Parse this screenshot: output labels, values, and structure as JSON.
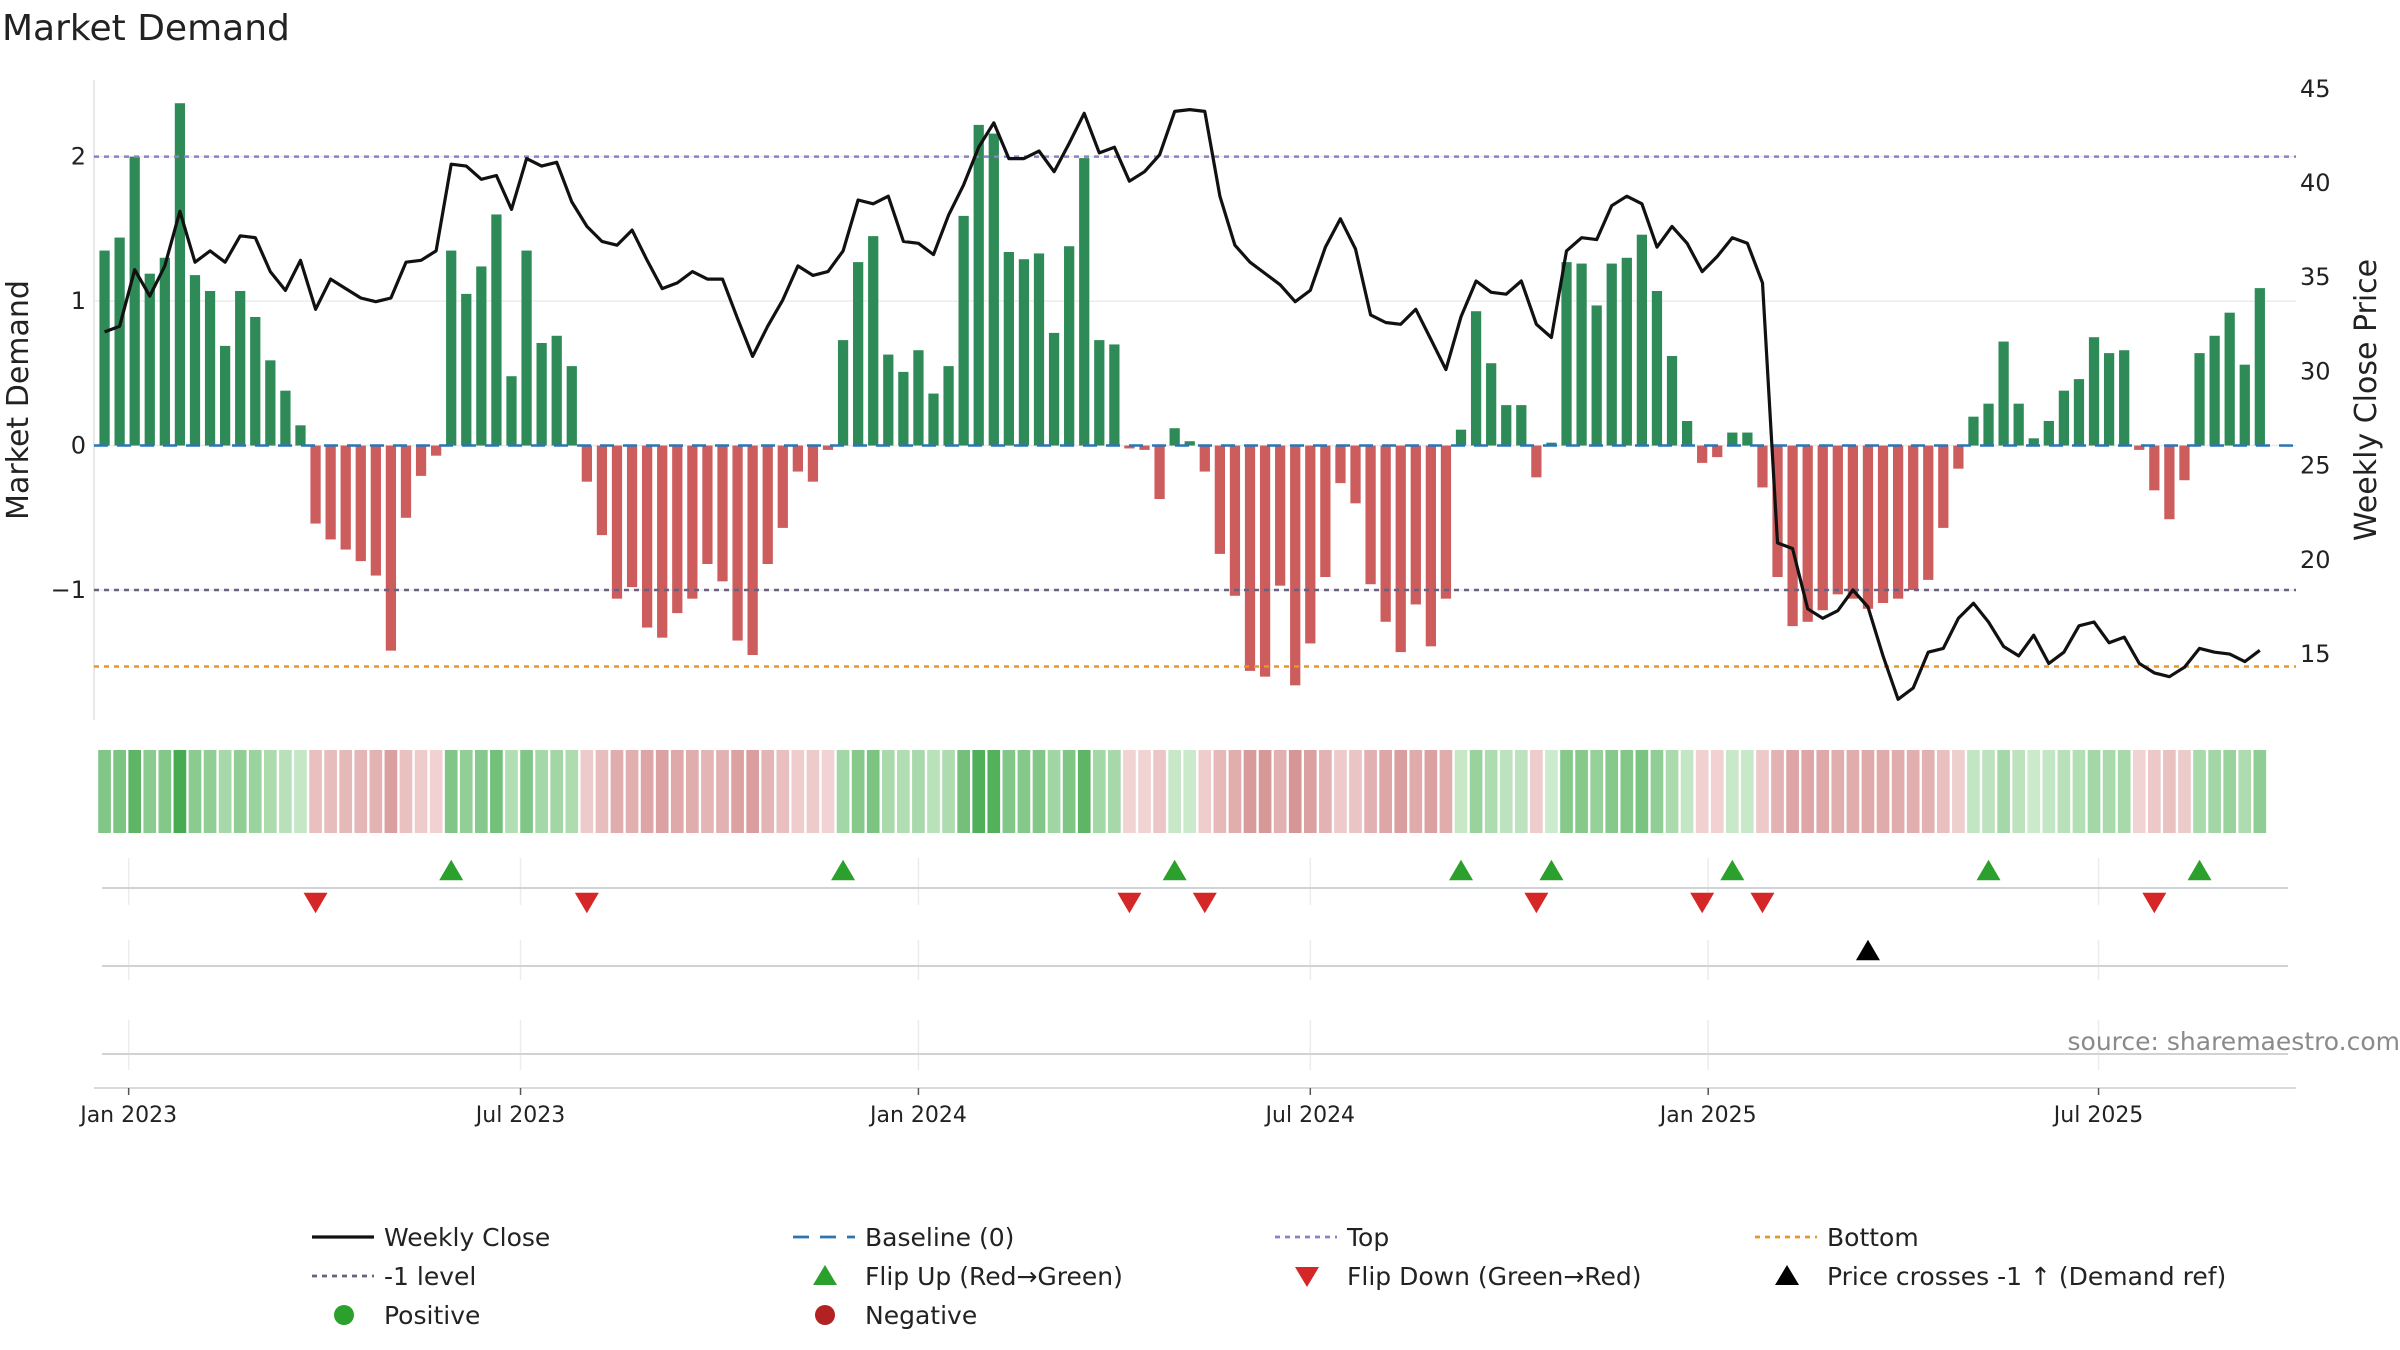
{
  "chart_data": {
    "type": "bar+line",
    "title": "Market Demand",
    "ylabel_left": "Market Demand",
    "ylabel_right": "Weekly Close Price",
    "source": "source: sharemaestro.com",
    "ylim_left": [
      -1.9,
      2.6
    ],
    "ylim_right": [
      11.5,
      46.0
    ],
    "yticks_left": [
      {
        "v": 2,
        "label": "2"
      },
      {
        "v": 1,
        "label": "1"
      },
      {
        "v": 0,
        "label": "0"
      },
      {
        "v": -1,
        "label": "−1"
      }
    ],
    "yticks_right": [
      {
        "v": 45,
        "label": "45"
      },
      {
        "v": 40,
        "label": "40"
      },
      {
        "v": 35,
        "label": "35"
      },
      {
        "v": 30,
        "label": "30"
      },
      {
        "v": 25,
        "label": "25"
      },
      {
        "v": 20,
        "label": "20"
      },
      {
        "v": 15,
        "label": "15"
      }
    ],
    "x_start": "2022-12-19",
    "x_range_weeks": [
      -0.7,
      145.4
    ],
    "x_ticks": [
      {
        "label": "Jan 2023",
        "week": 1.6
      },
      {
        "label": "Jul 2023",
        "week": 27.6
      },
      {
        "label": "Jan 2024",
        "week": 54.0
      },
      {
        "label": "Jul 2024",
        "week": 80.0
      },
      {
        "label": "Jan 2025",
        "week": 106.4
      },
      {
        "label": "Jul 2025",
        "week": 132.3
      }
    ],
    "levels": {
      "top": 2.0,
      "minus_one": -1.0,
      "bottom": -1.53,
      "baseline": 0
    },
    "colors": {
      "positive": "#2e8b57",
      "negative": "#cd5c5c",
      "close": "#111111",
      "top": "#8c80c8",
      "minus_one": "#6b6080",
      "bottom": "#e8952a",
      "baseline": "#2b75b5",
      "flip_up": "#2ca02c",
      "flip_down": "#d62728",
      "cross": "#000000"
    },
    "demand": [
      1.35,
      1.44,
      2.0,
      1.19,
      1.3,
      2.37,
      1.18,
      1.07,
      0.69,
      1.07,
      0.89,
      0.59,
      0.38,
      0.14,
      -0.54,
      -0.65,
      -0.72,
      -0.8,
      -0.9,
      -1.42,
      -0.5,
      -0.21,
      -0.07,
      1.35,
      1.05,
      1.24,
      1.6,
      0.48,
      1.35,
      0.71,
      0.76,
      0.55,
      -0.25,
      -0.62,
      -1.06,
      -0.98,
      -1.26,
      -1.33,
      -1.16,
      -1.06,
      -0.82,
      -0.94,
      -1.35,
      -1.45,
      -0.82,
      -0.57,
      -0.18,
      -0.25,
      -0.03,
      0.73,
      1.27,
      1.45,
      0.63,
      0.51,
      0.66,
      0.36,
      0.55,
      1.59,
      2.22,
      2.16,
      1.34,
      1.29,
      1.33,
      0.78,
      1.38,
      1.99,
      0.73,
      0.7,
      -0.02,
      -0.03,
      -0.37,
      0.12,
      0.03,
      -0.18,
      -0.75,
      -1.04,
      -1.56,
      -1.6,
      -0.97,
      -1.66,
      -1.37,
      -0.91,
      -0.26,
      -0.4,
      -0.96,
      -1.22,
      -1.43,
      -1.1,
      -1.39,
      -1.06,
      0.11,
      0.93,
      0.57,
      0.28,
      0.28,
      -0.22,
      0.02,
      1.27,
      1.26,
      0.97,
      1.26,
      1.3,
      1.46,
      1.07,
      0.62,
      0.17,
      -0.12,
      -0.08,
      0.09,
      0.09,
      -0.29,
      -0.91,
      -1.25,
      -1.22,
      -1.14,
      -1.03,
      -1.06,
      -1.13,
      -1.09,
      -1.06,
      -1.0,
      -0.93,
      -0.57,
      -0.16,
      0.2,
      0.29,
      0.72,
      0.29,
      0.05,
      0.17,
      0.38,
      0.46,
      0.75,
      0.64,
      0.66,
      -0.03,
      -0.31,
      -0.51,
      -0.24,
      0.64,
      0.76,
      0.92,
      0.56,
      1.09
    ],
    "close": [
      32.1,
      32.4,
      35.4,
      34.0,
      35.6,
      38.5,
      35.8,
      36.4,
      35.8,
      37.2,
      37.1,
      35.3,
      34.3,
      35.9,
      33.3,
      34.9,
      34.4,
      33.9,
      33.7,
      33.9,
      35.8,
      35.9,
      36.4,
      41.0,
      40.9,
      40.2,
      40.4,
      38.6,
      41.3,
      40.9,
      41.1,
      39.0,
      37.7,
      36.9,
      36.7,
      37.5,
      35.9,
      34.4,
      34.7,
      35.3,
      34.9,
      34.9,
      32.8,
      30.8,
      32.4,
      33.8,
      35.6,
      35.1,
      35.3,
      36.4,
      39.1,
      38.9,
      39.3,
      36.9,
      36.8,
      36.2,
      38.3,
      39.9,
      41.9,
      43.2,
      41.3,
      41.3,
      41.7,
      40.6,
      42.1,
      43.7,
      41.6,
      41.9,
      40.1,
      40.6,
      41.5,
      43.8,
      43.9,
      43.8,
      39.3,
      36.7,
      35.8,
      35.2,
      34.6,
      33.7,
      34.3,
      36.6,
      38.1,
      36.5,
      33.0,
      32.6,
      32.5,
      33.3,
      31.7,
      30.1,
      32.9,
      34.8,
      34.2,
      34.1,
      34.8,
      32.5,
      31.8,
      36.4,
      37.1,
      37.0,
      38.8,
      39.3,
      38.9,
      36.6,
      37.7,
      36.8,
      35.3,
      36.1,
      37.1,
      36.8,
      34.7,
      20.9,
      20.6,
      17.4,
      16.9,
      17.3,
      18.4,
      17.5,
      14.9,
      12.6,
      13.2,
      15.1,
      15.3,
      16.9,
      17.7,
      16.7,
      15.4,
      14.9,
      16.0,
      14.5,
      15.1,
      16.5,
      16.7,
      15.6,
      15.9,
      14.5,
      14.0,
      13.8,
      14.3,
      15.3,
      15.1,
      15.0,
      14.6,
      15.2
    ],
    "flip_up": [
      23,
      49,
      71,
      90,
      96,
      108,
      125,
      139
    ],
    "flip_down": [
      14,
      32,
      68,
      73,
      95,
      106,
      110,
      136
    ],
    "price_cross": [
      117
    ],
    "legend": [
      {
        "label": "Weekly Close",
        "kind": "line",
        "color": "#111111"
      },
      {
        "label": "Baseline (0)",
        "kind": "dash",
        "color": "#2b75b5"
      },
      {
        "label": "Top",
        "kind": "dot",
        "color": "#8c80c8"
      },
      {
        "label": "Bottom",
        "kind": "dot",
        "color": "#e8952a"
      },
      {
        "label": "-1 level",
        "kind": "dot",
        "color": "#6b6080"
      },
      {
        "label": "Flip Up (Red→Green)",
        "kind": "tri-up",
        "color": "#2ca02c"
      },
      {
        "label": "Flip Down (Green→Red)",
        "kind": "tri-down",
        "color": "#d62728"
      },
      {
        "label": "Price crosses -1 ↑ (Demand ref)",
        "kind": "tri-up",
        "color": "#000000"
      },
      {
        "label": "Positive",
        "kind": "circle",
        "color": "#2ca02c"
      },
      {
        "label": "Negative",
        "kind": "circle",
        "color": "#b22222"
      }
    ]
  }
}
